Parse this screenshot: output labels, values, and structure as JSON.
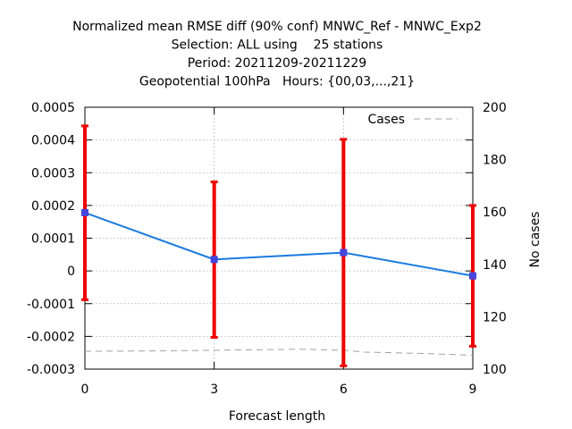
{
  "chart_data": {
    "type": "line",
    "title_lines": [
      "Normalized mean RMSE diff (90% conf) MNWC_Ref - MNWC_Exp2",
      "Selection: ALL using    25 stations",
      "Period: 20211209-20211229",
      "Geopotential 100hPa   Hours: {00,03,...,21}"
    ],
    "xlabel": "Forecast length",
    "ylabel": "",
    "y2label": "No cases",
    "x": [
      0,
      3,
      6,
      9
    ],
    "xlim": [
      0,
      9
    ],
    "ylim": [
      -0.0003,
      0.0005
    ],
    "y2lim": [
      100,
      200
    ],
    "x_ticks": [
      "0",
      "3",
      "6",
      "9"
    ],
    "y_ticks": [
      "0.0005",
      "0.0004",
      "0.0003",
      "0.0002",
      "0.0001",
      "0",
      "-0.0001",
      "-0.0002",
      "-0.0003"
    ],
    "y_tick_values": [
      0.0005,
      0.0004,
      0.0003,
      0.0002,
      0.0001,
      0,
      -0.0001,
      -0.0002,
      -0.0003
    ],
    "y2_ticks": [
      "200",
      "180",
      "160",
      "140",
      "120",
      "100"
    ],
    "y2_tick_values": [
      200,
      180,
      160,
      140,
      120,
      100
    ],
    "grid": true,
    "legend_position": "top-right",
    "series": [
      {
        "values": [
          0.000178,
          3.5e-05,
          5.6e-05,
          -1.5e-05
        ],
        "err_low": [
          -8.8e-05,
          -0.000203,
          -0.00029,
          -0.00023
        ],
        "err_high": [
          0.000443,
          0.000272,
          0.000402,
          0.0002
        ],
        "color": "#1a7be0",
        "marker_color": "#4646dc",
        "err_color": "#ee0000",
        "axis": "left"
      },
      {
        "name": "Cases",
        "x": [
          0,
          1,
          2,
          3,
          4,
          5,
          6,
          6.5,
          7,
          7.5,
          8,
          8.5,
          9
        ],
        "values": [
          106.8,
          106.9,
          107.0,
          107.2,
          107.4,
          107.6,
          107.2,
          106.5,
          106.3,
          106.1,
          105.9,
          105.6,
          105.3
        ],
        "color": "#a0a0a0",
        "dash": true,
        "axis": "right"
      }
    ]
  }
}
